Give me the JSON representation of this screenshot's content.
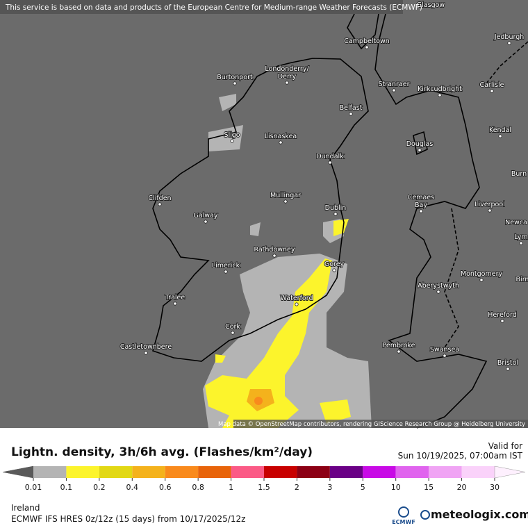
{
  "banner": "This service is based on data and products of the European Centre for Medium-range Weather Forecasts (ECMWF)",
  "places": [
    "Glasgow",
    "Jedburgh",
    "Campbeltown",
    "Londonderry/",
    "Derry",
    "Burtonport",
    "Stranraer",
    "Kirkcudbright",
    "Carlisle",
    "Belfast",
    "Sligo",
    "Lisnaskea",
    "Kendal",
    "Douglas",
    "Dundalk",
    "Burn",
    "Mullingar",
    "Clifden",
    "Cemaes",
    "Bay",
    "Liverpool",
    "Dublin",
    "Galway",
    "Newca",
    "Lym",
    "Rathdowney",
    "Gorey",
    "Limerick",
    "Montgomery",
    "Birn",
    "Aberystwyth",
    "Tralee",
    "Waterford",
    "Hereford",
    "Cork",
    "Pembroke",
    "Castletownbere",
    "Swansea",
    "Bristol"
  ],
  "attribution": "Map data © OpenStreetMap contributors, rendering GIScience Research Group @ Heidelberg University",
  "legend": {
    "title": "Lightn. density, 3h/6h avg. (Flashes/km²/day)",
    "ticks": [
      "0.01",
      "0.1",
      "0.2",
      "0.4",
      "0.6",
      "0.8",
      "1",
      "1.5",
      "2",
      "3",
      "5",
      "10",
      "15",
      "20",
      "30"
    ],
    "colors": [
      "#5a5a5a",
      "#b4b4b4",
      "#fcf42c",
      "#e2d814",
      "#f4b21c",
      "#f98a1c",
      "#e8640a",
      "#fb5a86",
      "#c80000",
      "#8c0014",
      "#6a0086",
      "#c80ae6",
      "#e064ee",
      "#f0a4f4",
      "#fad2fa",
      "#fef0fe"
    ]
  },
  "valid_label": "Valid for",
  "valid_time": "Sun 10/19/2025, 07:00am IST",
  "region": "Ireland",
  "model": "ECMWF IFS HRES 0z/12z (15 days) from 10/17/2025/12z",
  "logo_left": "ECMWF",
  "logo_right": "meteologix.com"
}
